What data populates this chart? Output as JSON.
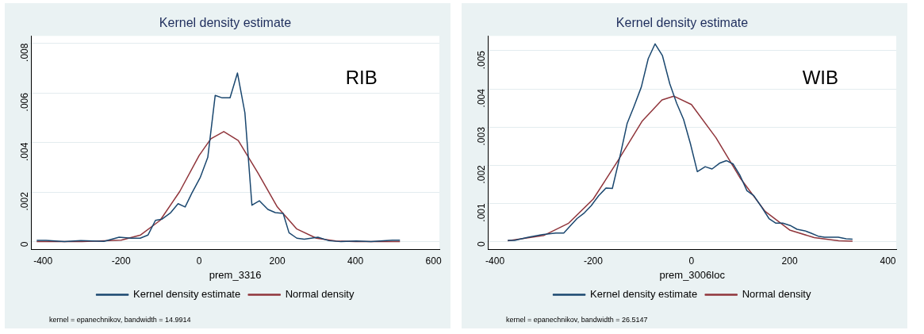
{
  "chart_data": [
    {
      "type": "line",
      "title": "Kernel density estimate",
      "xlabel": "prem_3316",
      "xlim": [
        -430,
        615
      ],
      "xticks": [
        -400,
        -200,
        0,
        200,
        400,
        600
      ],
      "ylim": [
        -0.0003,
        0.0083
      ],
      "yticks": [
        0,
        {
          "value": 0.002,
          "label": ".002"
        },
        {
          "value": 0.004,
          "label": ".004"
        },
        {
          "value": 0.006,
          "label": ".006"
        },
        {
          "value": 0.008,
          "label": ".008"
        }
      ],
      "grid": "y",
      "legend": "bottom",
      "marker": "none",
      "annotations": [
        "RIB",
        "kernel = epanechnikov, bandwidth = 14.9914"
      ],
      "series": [
        {
          "name": "Kernel density estimate",
          "color": "#1a476f",
          "x": [
            -416,
            -392,
            -345,
            -303,
            -244,
            -205,
            -174,
            -151,
            -131,
            -112,
            -95,
            -73,
            -54,
            -36,
            -19,
            3,
            22,
            41,
            59,
            79,
            98,
            117,
            135,
            154,
            176,
            195,
            215,
            230,
            250,
            269,
            304,
            332,
            363,
            402,
            440,
            495,
            514
          ],
          "values": [
            5e-05,
            5e-05,
            0,
            4e-05,
            1e-05,
            0.00018,
            0.00014,
            0.00014,
            0.00027,
            0.00086,
            0.00091,
            0.00117,
            0.00153,
            0.0014,
            0.00195,
            0.0026,
            0.0034,
            0.0059,
            0.0058,
            0.0058,
            0.0068,
            0.0052,
            0.00147,
            0.00165,
            0.0013,
            0.00117,
            0.00114,
            0.00036,
            0.00014,
            0.0001,
            0.00018,
            4e-05,
            0,
            3e-05,
            0,
            6e-05,
            6e-05
          ]
        },
        {
          "name": "Normal density",
          "color": "#90353b",
          "x": [
            -416,
            -300,
            -200,
            -150,
            -100,
            -50,
            0,
            30,
            63,
            100,
            150,
            200,
            250,
            300,
            350,
            400,
            514
          ],
          "values": [
            0,
            0,
            6e-05,
            0.00027,
            0.00086,
            0.00202,
            0.00348,
            0.00415,
            0.00444,
            0.00408,
            0.00278,
            0.0014,
            0.00051,
            0.00014,
            3e-05,
            0,
            0
          ]
        }
      ]
    },
    {
      "type": "line",
      "title": "Kernel density estimate",
      "xlabel": "prem_3006loc",
      "xlim": [
        -414,
        417
      ],
      "xticks": [
        -400,
        -200,
        0,
        200,
        400
      ],
      "ylim": [
        -0.0002,
        0.00539
      ],
      "yticks": [
        0,
        {
          "value": 0.001,
          "label": ".001"
        },
        {
          "value": 0.002,
          "label": ".002"
        },
        {
          "value": 0.003,
          "label": ".003"
        },
        {
          "value": 0.004,
          "label": ".004"
        },
        {
          "value": 0.005,
          "label": ".005"
        }
      ],
      "grid": "y",
      "legend": "bottom",
      "marker": "none",
      "annotations": [
        "WIB",
        "kernel = epanechnikov, bandwidth = 26.5147"
      ],
      "series": [
        {
          "name": "Kernel density estimate",
          "color": "#1a476f",
          "x": [
            -374,
            -360,
            -332,
            -304,
            -276,
            -260,
            -233,
            -218,
            -204,
            -189,
            -174,
            -161,
            -145,
            -131,
            -117,
            -102,
            -88,
            -74,
            -59,
            -44,
            -30,
            -16,
            -2,
            12,
            28,
            42,
            57,
            71,
            85,
            99,
            113,
            127,
            143,
            158,
            172,
            186,
            201,
            215,
            231,
            243,
            258,
            271,
            299,
            315,
            328
          ],
          "values": [
            3e-05,
            3e-05,
            0.00011,
            0.00018,
            0.00022,
            0.00022,
            0.0006,
            0.00075,
            0.00094,
            0.0012,
            0.0014,
            0.00139,
            0.00226,
            0.00309,
            0.00354,
            0.00405,
            0.00479,
            0.00518,
            0.00487,
            0.00413,
            0.00362,
            0.0032,
            0.00256,
            0.00183,
            0.00196,
            0.0019,
            0.00205,
            0.00212,
            0.00203,
            0.00173,
            0.00133,
            0.0012,
            0.0009,
            0.0006,
            0.00048,
            0.00048,
            0.00042,
            0.00032,
            0.00028,
            0.00022,
            0.00014,
            0.00011,
            0.00011,
            7e-05,
            6e-05
          ]
        },
        {
          "name": "Normal density",
          "color": "#90353b",
          "x": [
            -374,
            -300,
            -250,
            -200,
            -150,
            -100,
            -60,
            -36,
            0,
            50,
            100,
            150,
            200,
            250,
            300,
            328
          ],
          "values": [
            2e-05,
            0.00016,
            0.00048,
            0.00111,
            0.00211,
            0.00316,
            0.00371,
            0.00381,
            0.00359,
            0.00272,
            0.00165,
            0.00079,
            0.0003,
            0.0001,
            2e-05,
            1e-05
          ]
        }
      ]
    }
  ]
}
